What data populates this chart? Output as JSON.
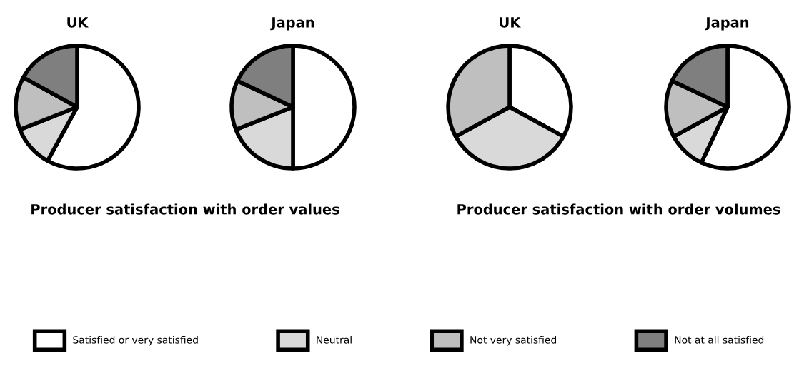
{
  "chart_data": [
    {
      "type": "pie",
      "title": "UK",
      "categories": [
        "Satisfied or very satisfied",
        "Neutral",
        "Not very satisfied",
        "Not at all satisfied"
      ],
      "values": [
        58,
        11,
        14,
        17
      ],
      "colors": [
        "#ffffff",
        "#d9d9d9",
        "#bfbfbf",
        "#7f7f7f"
      ],
      "annotations": [
        "Producer satisfaction with order values"
      ],
      "legend": "bottom"
    },
    {
      "type": "pie",
      "title": "Japan",
      "values": [
        50,
        19,
        13,
        18
      ],
      "colors": [
        "#ffffff",
        "#d9d9d9",
        "#bfbfbf",
        "#7f7f7f"
      ]
    },
    {
      "type": "pie",
      "title": "UK",
      "values": [
        33,
        34,
        33
      ],
      "colors": [
        "#ffffff",
        "#d9d9d9",
        "#bfbfbf"
      ],
      "annotations": [
        "Producer satisfaction with order volumes"
      ]
    },
    {
      "type": "pie",
      "title": "Japan",
      "values": [
        57,
        10,
        15,
        18
      ],
      "colors": [
        "#ffffff",
        "#d9d9d9",
        "#bfbfbf",
        "#7f7f7f"
      ]
    }
  ]
}
